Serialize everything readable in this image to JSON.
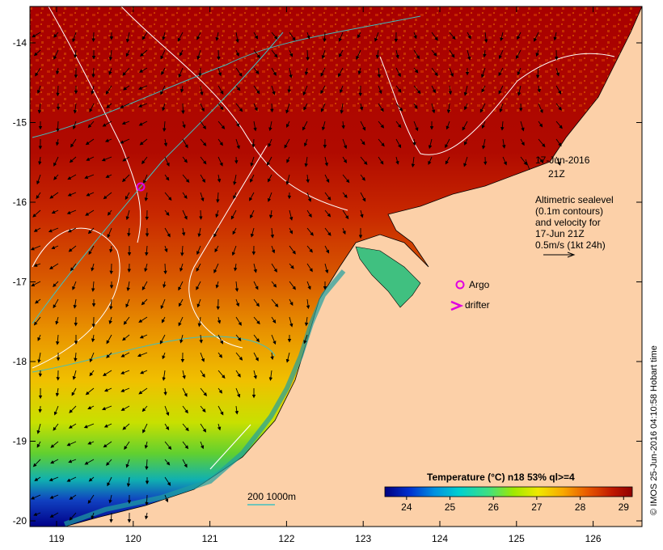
{
  "colors": {
    "land": "#fcd0a8",
    "sst_hot": "#a80000",
    "sst_warm": "#d83800",
    "contour": "#ffffff",
    "isobath": "#40c0c0",
    "argo": "#e000e0",
    "drifter": "#e000e0"
  },
  "map": {
    "lon_ticks": [
      "119",
      "120",
      "121",
      "122",
      "123",
      "124",
      "125",
      "126"
    ],
    "lat_ticks": [
      "-14",
      "-15",
      "-16",
      "-17",
      "-18",
      "-19",
      "-20"
    ]
  },
  "annotation": {
    "date": "17-Jun-2016",
    "time": "21Z",
    "legend_line1": "Altimetric sealevel",
    "legend_line2": "(0.1m contours)",
    "legend_line3": "and velocity for",
    "legend_line4": "17-Jun 21Z",
    "legend_line5": "0.5m/s (1kt 24h)",
    "argo_label": "Argo",
    "drifter_label": "drifter"
  },
  "isobath_legend": "200  1000m",
  "colorbar": {
    "title": "Temperature (°C) n18 53% ql>=4",
    "tick_labels": [
      "24",
      "25",
      "26",
      "27",
      "28",
      "29"
    ],
    "min": 23.5,
    "max": 29.2
  },
  "credit": "© IMOS 25-Jun-2016 04:10:58 Hobart time"
}
